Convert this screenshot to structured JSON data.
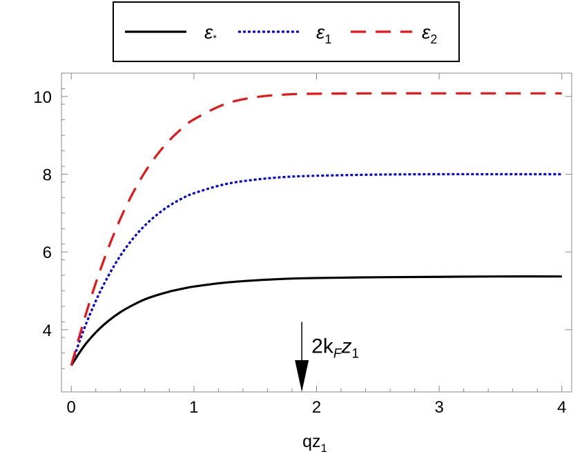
{
  "chart_data": {
    "type": "line",
    "title": "",
    "xlabel": "qz",
    "xlabel_sub": "1",
    "ylabel": "",
    "xlim": [
      -0.08,
      4.08
    ],
    "ylim": [
      2.4,
      10.6
    ],
    "x_ticks": [
      0,
      1,
      2,
      3,
      4
    ],
    "x_tick_labels": [
      "0",
      "1",
      "2",
      "3",
      "4"
    ],
    "y_ticks": [
      4,
      6,
      8,
      10
    ],
    "y_tick_labels": [
      "4",
      "6",
      "8",
      "10"
    ],
    "grid": false,
    "legend_position": "top-center, outside plot",
    "series": [
      {
        "name": "ε",
        "name_sub": "*",
        "color": "#000000",
        "style": "solid",
        "x": [
          0,
          0.1,
          0.2,
          0.3,
          0.4,
          0.5,
          0.6,
          0.7,
          0.8,
          0.9,
          1.0,
          1.25,
          1.5,
          1.75,
          2.0,
          2.5,
          3.0,
          3.5,
          4.0
        ],
        "y": [
          3.08,
          3.56,
          3.93,
          4.22,
          4.45,
          4.63,
          4.78,
          4.89,
          4.98,
          5.05,
          5.11,
          5.21,
          5.27,
          5.31,
          5.33,
          5.35,
          5.36,
          5.37,
          5.37
        ]
      },
      {
        "name": "ε",
        "name_sub": "1",
        "color": "#0000ee",
        "style": "dotted",
        "x": [
          0,
          0.1,
          0.2,
          0.3,
          0.4,
          0.5,
          0.6,
          0.7,
          0.8,
          0.9,
          1.0,
          1.25,
          1.5,
          1.75,
          2.0,
          2.5,
          3.0,
          3.5,
          4.0
        ],
        "y": [
          3.08,
          3.98,
          4.74,
          5.37,
          5.9,
          6.33,
          6.68,
          6.96,
          7.19,
          7.37,
          7.51,
          7.74,
          7.86,
          7.93,
          7.96,
          7.99,
          8.0,
          8.0,
          8.0
        ]
      },
      {
        "name": "ε",
        "name_sub": "2",
        "color": "#ee1111",
        "style": "dashed",
        "x": [
          0,
          0.1,
          0.2,
          0.3,
          0.4,
          0.5,
          0.6,
          0.7,
          0.8,
          0.9,
          1.0,
          1.25,
          1.5,
          1.75,
          2.0,
          2.5,
          3.0,
          3.5,
          4.0
        ],
        "y": [
          3.08,
          4.2,
          5.2,
          6.08,
          6.85,
          7.5,
          8.05,
          8.5,
          8.87,
          9.17,
          9.41,
          9.8,
          9.98,
          10.05,
          10.07,
          10.08,
          10.08,
          10.08,
          10.08
        ]
      }
    ],
    "annotations": [
      {
        "text": "2k",
        "sub": "F",
        "text2": "z",
        "sub2": "1",
        "arrow_x": 1.88,
        "arrow_y_from": 4.2,
        "arrow_y_to": 2.4
      }
    ]
  }
}
